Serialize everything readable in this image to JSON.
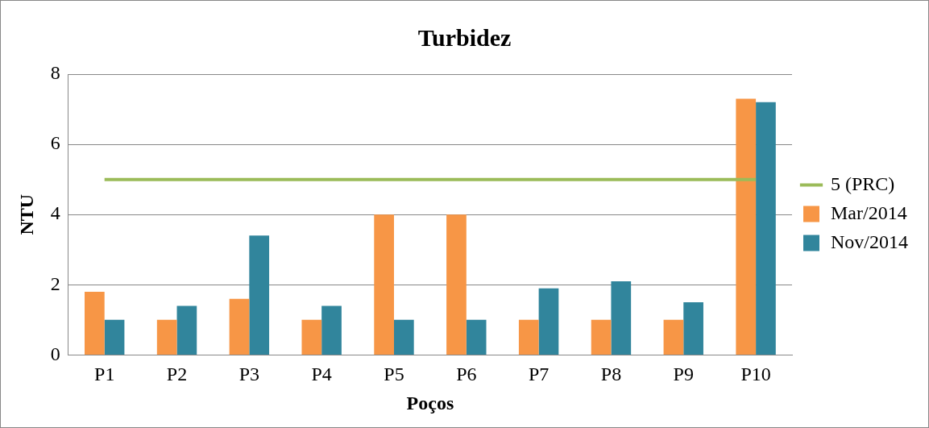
{
  "chart_data": {
    "type": "bar",
    "title": "Turbidez",
    "xlabel": "Poços",
    "ylabel": "NTU",
    "categories": [
      "P1",
      "P2",
      "P3",
      "P4",
      "P5",
      "P6",
      "P7",
      "P8",
      "P9",
      "P10"
    ],
    "series": [
      {
        "name": "Mar/2014",
        "color": "#f79646",
        "values": [
          1.8,
          1,
          1.6,
          1,
          4,
          4,
          1,
          1,
          1,
          7.3
        ]
      },
      {
        "name": "Nov/2014",
        "color": "#31859c",
        "values": [
          1,
          1.4,
          3.4,
          1.4,
          1,
          1,
          1.9,
          2.1,
          1.5,
          7.2
        ]
      },
      {
        "name": "5 (PRC)",
        "type": "line",
        "color": "#9bbb59",
        "values": [
          5,
          5,
          5,
          5,
          5,
          5,
          5,
          5,
          5,
          5
        ]
      }
    ],
    "ylim": [
      0,
      8
    ],
    "yticks": [
      0,
      2,
      4,
      6,
      8
    ],
    "grid": "y",
    "legend": "right",
    "marker": "none"
  }
}
